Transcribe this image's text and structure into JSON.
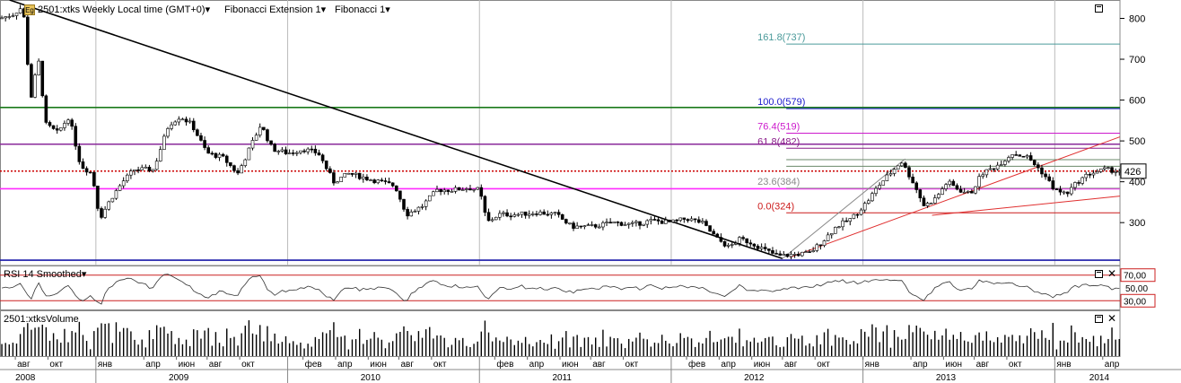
{
  "header": {
    "eg_badge": "Eg",
    "symbol": "2501:xtks Weekly Local time (GMT+0)",
    "study1": "Fibonacci Extension 1",
    "study2": "Fibonacci 1",
    "dropdown_glyph": "▾"
  },
  "rsi_panel": {
    "title": "RSI 14 Smoothed"
  },
  "volume_panel": {
    "title": "2501:xtksVolume"
  },
  "close_glyph": "✕",
  "chart_data": [
    {
      "type": "candlestick",
      "title": "2501:xtks Weekly",
      "y_ticks": [
        300,
        400,
        500,
        600,
        700,
        800
      ],
      "ylim": [
        195,
        845
      ],
      "last_price": 426,
      "x_month_labels": [
        {
          "label": "авг",
          "t": 2008.58
        },
        {
          "label": "окт",
          "t": 2008.75
        },
        {
          "label": "янв",
          "t": 2009.0
        },
        {
          "label": "апр",
          "t": 2009.25
        },
        {
          "label": "июн",
          "t": 2009.42
        },
        {
          "label": "авг",
          "t": 2009.58
        },
        {
          "label": "окт",
          "t": 2009.75
        },
        {
          "label": "фев",
          "t": 2010.08
        },
        {
          "label": "апр",
          "t": 2010.25
        },
        {
          "label": "июн",
          "t": 2010.42
        },
        {
          "label": "авг",
          "t": 2010.58
        },
        {
          "label": "окт",
          "t": 2010.75
        },
        {
          "label": "фев",
          "t": 2011.08
        },
        {
          "label": "апр",
          "t": 2011.25
        },
        {
          "label": "июн",
          "t": 2011.42
        },
        {
          "label": "авг",
          "t": 2011.58
        },
        {
          "label": "окт",
          "t": 2011.75
        },
        {
          "label": "фев",
          "t": 2012.08
        },
        {
          "label": "апр",
          "t": 2012.25
        },
        {
          "label": "июн",
          "t": 2012.42
        },
        {
          "label": "авг",
          "t": 2012.58
        },
        {
          "label": "окт",
          "t": 2012.75
        },
        {
          "label": "янв",
          "t": 2013.0
        },
        {
          "label": "апр",
          "t": 2013.25
        },
        {
          "label": "июн",
          "t": 2013.42
        },
        {
          "label": "авг",
          "t": 2013.58
        },
        {
          "label": "окт",
          "t": 2013.75
        },
        {
          "label": "янв",
          "t": 2014.0
        },
        {
          "label": "апр",
          "t": 2014.25
        }
      ],
      "x_year_labels": [
        {
          "label": "2008",
          "t": 2008.58
        },
        {
          "label": "2009",
          "t": 2009.38
        },
        {
          "label": "2010",
          "t": 2010.38
        },
        {
          "label": "2011",
          "t": 2011.38
        },
        {
          "label": "2012",
          "t": 2012.38
        },
        {
          "label": "2013",
          "t": 2013.38
        },
        {
          "label": "2014",
          "t": 2014.18
        }
      ],
      "year_boundaries": [
        2009.0,
        2010.0,
        2011.0,
        2012.0,
        2013.0,
        2014.0
      ],
      "xlim": [
        2008.5,
        2014.34
      ],
      "price_path": [
        {
          "t": 2008.5,
          "p": 800
        },
        {
          "t": 2008.57,
          "p": 810
        },
        {
          "t": 2008.62,
          "p": 830
        },
        {
          "t": 2008.66,
          "p": 600
        },
        {
          "t": 2008.7,
          "p": 700
        },
        {
          "t": 2008.74,
          "p": 540
        },
        {
          "t": 2008.8,
          "p": 520
        },
        {
          "t": 2008.86,
          "p": 560
        },
        {
          "t": 2008.92,
          "p": 440
        },
        {
          "t": 2008.98,
          "p": 420
        },
        {
          "t": 2009.02,
          "p": 310
        },
        {
          "t": 2009.08,
          "p": 360
        },
        {
          "t": 2009.14,
          "p": 400
        },
        {
          "t": 2009.2,
          "p": 430
        },
        {
          "t": 2009.3,
          "p": 430
        },
        {
          "t": 2009.38,
          "p": 540
        },
        {
          "t": 2009.44,
          "p": 560
        },
        {
          "t": 2009.5,
          "p": 540
        },
        {
          "t": 2009.58,
          "p": 470
        },
        {
          "t": 2009.66,
          "p": 460
        },
        {
          "t": 2009.74,
          "p": 420
        },
        {
          "t": 2009.8,
          "p": 480
        },
        {
          "t": 2009.86,
          "p": 540
        },
        {
          "t": 2009.92,
          "p": 480
        },
        {
          "t": 2010.0,
          "p": 470
        },
        {
          "t": 2010.08,
          "p": 480
        },
        {
          "t": 2010.16,
          "p": 470
        },
        {
          "t": 2010.24,
          "p": 400
        },
        {
          "t": 2010.32,
          "p": 420
        },
        {
          "t": 2010.4,
          "p": 410
        },
        {
          "t": 2010.48,
          "p": 400
        },
        {
          "t": 2010.56,
          "p": 390
        },
        {
          "t": 2010.62,
          "p": 320
        },
        {
          "t": 2010.7,
          "p": 340
        },
        {
          "t": 2010.78,
          "p": 380
        },
        {
          "t": 2010.86,
          "p": 380
        },
        {
          "t": 2010.94,
          "p": 385
        },
        {
          "t": 2011.0,
          "p": 380
        },
        {
          "t": 2011.04,
          "p": 300
        },
        {
          "t": 2011.1,
          "p": 320
        },
        {
          "t": 2011.2,
          "p": 320
        },
        {
          "t": 2011.3,
          "p": 325
        },
        {
          "t": 2011.4,
          "p": 320
        },
        {
          "t": 2011.48,
          "p": 290
        },
        {
          "t": 2011.58,
          "p": 290
        },
        {
          "t": 2011.7,
          "p": 300
        },
        {
          "t": 2011.8,
          "p": 295
        },
        {
          "t": 2011.9,
          "p": 305
        },
        {
          "t": 2012.0,
          "p": 300
        },
        {
          "t": 2012.08,
          "p": 310
        },
        {
          "t": 2012.16,
          "p": 300
        },
        {
          "t": 2012.24,
          "p": 260
        },
        {
          "t": 2012.3,
          "p": 240
        },
        {
          "t": 2012.36,
          "p": 260
        },
        {
          "t": 2012.42,
          "p": 250
        },
        {
          "t": 2012.5,
          "p": 230
        },
        {
          "t": 2012.56,
          "p": 218
        },
        {
          "t": 2012.64,
          "p": 222
        },
        {
          "t": 2012.72,
          "p": 225
        },
        {
          "t": 2012.78,
          "p": 250
        },
        {
          "t": 2012.86,
          "p": 290
        },
        {
          "t": 2012.94,
          "p": 310
        },
        {
          "t": 2013.02,
          "p": 350
        },
        {
          "t": 2013.08,
          "p": 390
        },
        {
          "t": 2013.14,
          "p": 420
        },
        {
          "t": 2013.2,
          "p": 450
        },
        {
          "t": 2013.26,
          "p": 400
        },
        {
          "t": 2013.32,
          "p": 340
        },
        {
          "t": 2013.38,
          "p": 360
        },
        {
          "t": 2013.44,
          "p": 400
        },
        {
          "t": 2013.5,
          "p": 380
        },
        {
          "t": 2013.56,
          "p": 370
        },
        {
          "t": 2013.62,
          "p": 420
        },
        {
          "t": 2013.7,
          "p": 440
        },
        {
          "t": 2013.78,
          "p": 470
        },
        {
          "t": 2013.86,
          "p": 460
        },
        {
          "t": 2013.94,
          "p": 420
        },
        {
          "t": 2014.0,
          "p": 380
        },
        {
          "t": 2014.06,
          "p": 370
        },
        {
          "t": 2014.12,
          "p": 400
        },
        {
          "t": 2014.18,
          "p": 420
        },
        {
          "t": 2014.26,
          "p": 430
        },
        {
          "t": 2014.34,
          "p": 426
        }
      ],
      "horizontal_lines": [
        {
          "value": 582,
          "color": "#1a7a1a",
          "style": "solid"
        },
        {
          "value": 492,
          "color": "#8a2a9a",
          "style": "solid"
        },
        {
          "value": 426,
          "color": "#cc0000",
          "style": "dotted"
        },
        {
          "value": 383,
          "color": "#ff2aff",
          "style": "solid"
        },
        {
          "value": 208,
          "color": "#1a1aaa",
          "style": "solid"
        }
      ],
      "fibonacci_levels": [
        {
          "label": "161.8(737)",
          "value": 737,
          "color": "#4a9a9a"
        },
        {
          "label": "100.0(579)",
          "value": 579,
          "color": "#1a1acc"
        },
        {
          "label": "76.4(519)",
          "value": 519,
          "color": "#cc1acc"
        },
        {
          "label": "61.8(482)",
          "value": 482,
          "color": "#8a1a8a"
        },
        {
          "label": "",
          "value": 454,
          "color": "#6a8a6a"
        },
        {
          "label": "",
          "value": 438,
          "color": "#6a8a6a"
        },
        {
          "label": "23.6(384)",
          "value": 384,
          "color": "#8a8a8a"
        },
        {
          "label": "0.0(324)",
          "value": 324,
          "color": "#cc1a1a"
        }
      ],
      "fib_start_t": 2012.6,
      "trend_lines": [
        {
          "t1": 2008.55,
          "p1": 845,
          "t2": 2012.58,
          "p2": 212,
          "color": "#000000"
        },
        {
          "t1": 2012.58,
          "p1": 212,
          "t2": 2013.22,
          "p2": 456,
          "color": "#888888"
        },
        {
          "t1": 2012.62,
          "p1": 215,
          "t2": 2014.34,
          "p2": 510,
          "color": "#e03030"
        },
        {
          "t1": 2013.36,
          "p1": 318,
          "t2": 2014.34,
          "p2": 365,
          "color": "#e03030"
        }
      ]
    },
    {
      "type": "line",
      "title": "RSI 14 Smoothed",
      "y_ticks": [
        30,
        70
      ],
      "y_tick_labels": [
        "30,00",
        "70,00"
      ],
      "extra_tick_label": "50,00",
      "ylim": [
        15,
        85
      ]
    },
    {
      "type": "bar",
      "title": "2501:xtksVolume"
    }
  ]
}
